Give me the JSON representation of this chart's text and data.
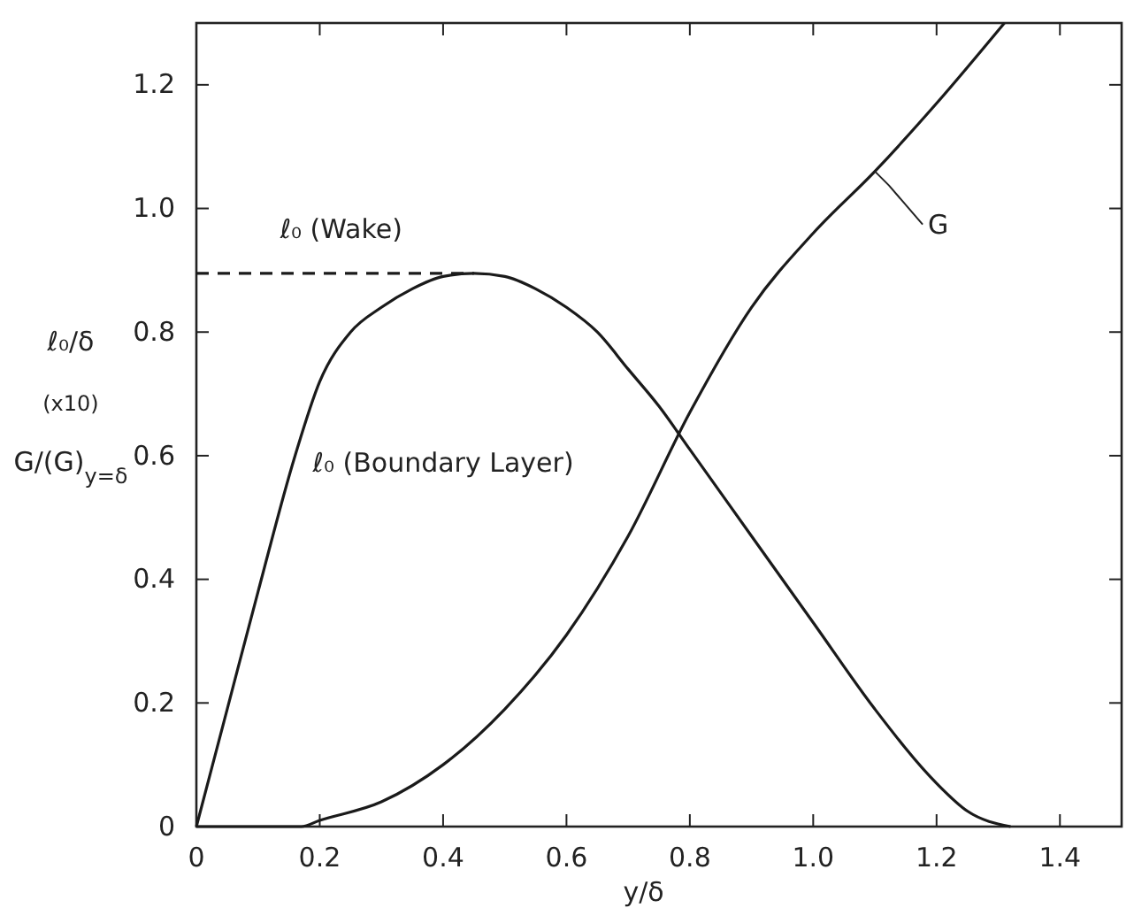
{
  "chart_data": {
    "type": "line",
    "xlabel": "y/δ",
    "ylabel": "ℓ₀/δ\n(x10)\nG/(G)$_{y=δ}$",
    "xlim": [
      0,
      1.5
    ],
    "ylim": [
      0,
      1.3
    ],
    "xticks": [
      0,
      0.2,
      0.4,
      0.6,
      0.8,
      {
        "value": 1,
        "label": "1.0"
      },
      1.2,
      1.4
    ],
    "yticks": [
      0,
      0.2,
      0.4,
      0.6,
      0.8,
      {
        "value": 1,
        "label": "1.0"
      },
      1.2
    ],
    "grid": false,
    "series": [
      {
        "name": "ℓ₀ (Boundary Layer)",
        "color": "#1a1a1a",
        "x": [
          0,
          0.05,
          0.1,
          0.16,
          0.2,
          0.25,
          0.3,
          0.35,
          0.4,
          0.45,
          0.5,
          0.55,
          0.6,
          0.65,
          0.7,
          0.75,
          0.8,
          0.9,
          1.0,
          1.1,
          1.2,
          1.25,
          1.32
        ],
        "values": [
          0,
          0.19,
          0.38,
          0.6,
          0.72,
          0.8,
          0.84,
          0.87,
          0.89,
          0.895,
          0.89,
          0.87,
          0.84,
          0.8,
          0.74,
          0.68,
          0.61,
          0.47,
          0.33,
          0.19,
          0.07,
          0.025,
          0
        ]
      },
      {
        "name": "G",
        "color": "#1a1a1a",
        "x": [
          0,
          0.17,
          0.2,
          0.3,
          0.4,
          0.5,
          0.6,
          0.7,
          0.8,
          0.9,
          1.0,
          1.1,
          1.2,
          1.31
        ],
        "values": [
          0,
          0,
          0.01,
          0.04,
          0.1,
          0.19,
          0.31,
          0.47,
          0.67,
          0.84,
          0.96,
          1.06,
          1.17,
          1.3
        ]
      },
      {
        "name": "ℓ₀ (Wake)",
        "color": "#1a1a1a",
        "line_style": "dashed",
        "x": [
          0,
          0.45
        ],
        "values": [
          0.895,
          0.895
        ]
      }
    ]
  }
}
